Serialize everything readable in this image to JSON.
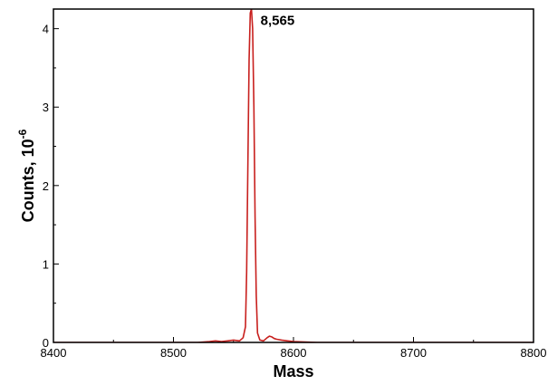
{
  "chart_data": {
    "type": "line",
    "title": "",
    "xlabel": "Mass",
    "ylabel_main": "Counts, 10",
    "ylabel_exponent": "-6",
    "xlim": [
      8400,
      8800
    ],
    "ylim": [
      0,
      4.25
    ],
    "x_ticks": [
      8400,
      8500,
      8600,
      8700,
      8800
    ],
    "x_tick_labels": [
      "8400",
      "8500",
      "8600",
      "8700",
      "8800"
    ],
    "y_ticks": [
      0,
      1,
      2,
      3,
      4
    ],
    "y_tick_labels": [
      "0",
      "1",
      "2",
      "3",
      "4"
    ],
    "grid": false,
    "series": [
      {
        "color": "#c8201e",
        "x": [
          8400,
          8450,
          8500,
          8520,
          8530,
          8535,
          8540,
          8545,
          8550,
          8555,
          8558,
          8560,
          8561,
          8562,
          8563,
          8564,
          8565,
          8566,
          8567,
          8568,
          8569,
          8570,
          8572,
          8575,
          8578,
          8580,
          8582,
          8584,
          8586,
          8590,
          8595,
          8600,
          8620,
          8650,
          8700,
          8750,
          8800
        ],
        "y": [
          0.0,
          0.0,
          0.0,
          0.0,
          0.01,
          0.02,
          0.01,
          0.02,
          0.03,
          0.02,
          0.06,
          0.2,
          0.9,
          2.2,
          3.6,
          4.2,
          4.25,
          4.0,
          3.0,
          1.6,
          0.6,
          0.12,
          0.03,
          0.02,
          0.06,
          0.08,
          0.07,
          0.05,
          0.04,
          0.03,
          0.02,
          0.01,
          0.0,
          0.0,
          0.0,
          0.0,
          0.0
        ]
      }
    ],
    "annotations": [
      {
        "text": "8,565",
        "x": 8565,
        "y": 4.05
      }
    ]
  }
}
